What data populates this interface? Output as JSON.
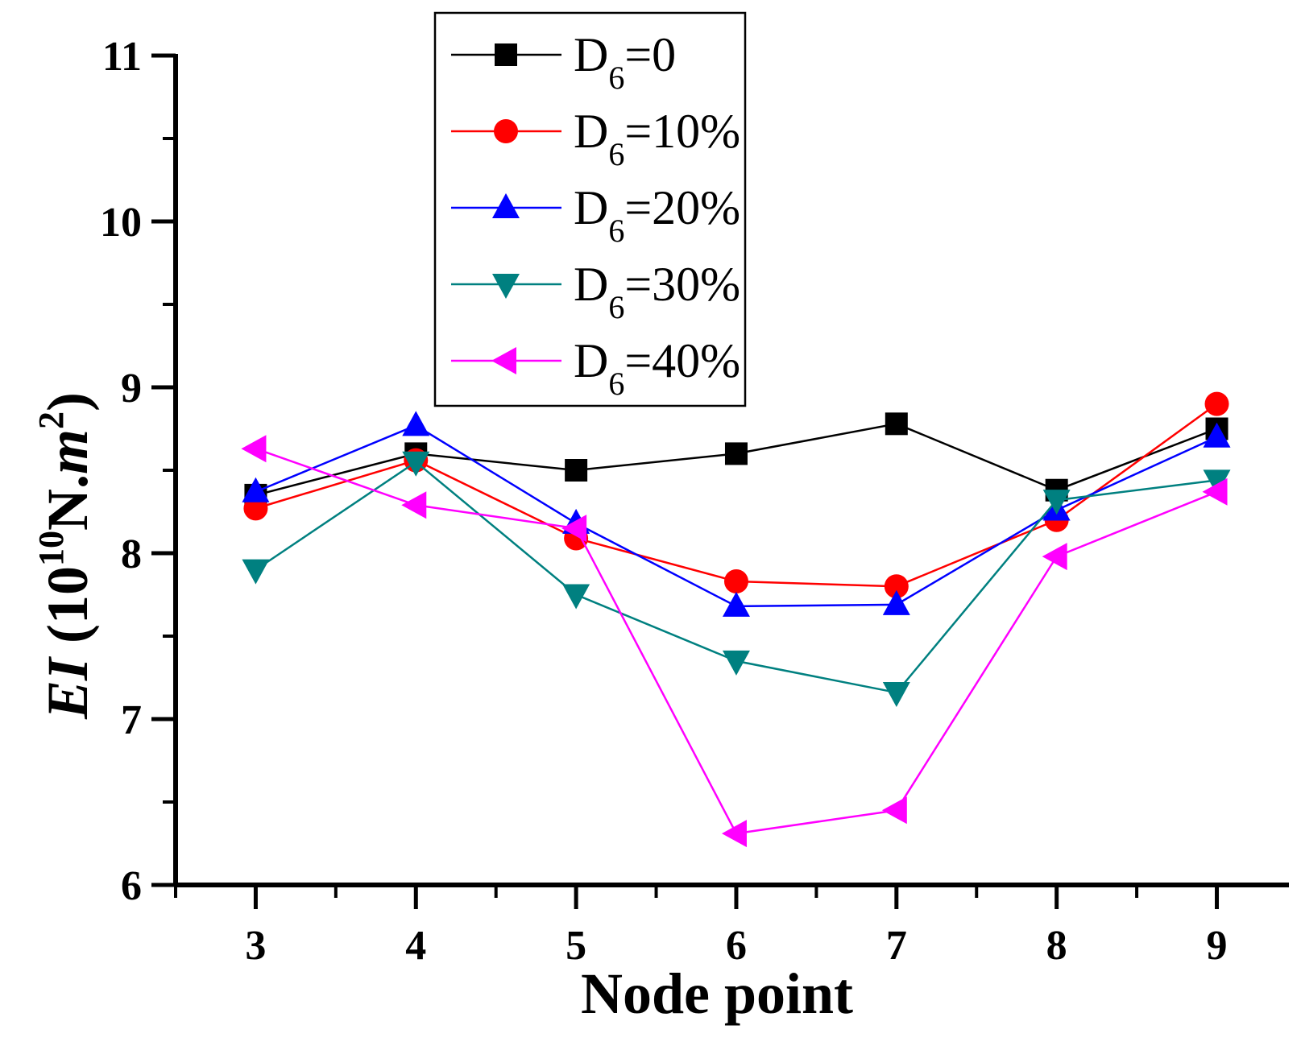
{
  "chart_data": {
    "type": "line",
    "title": "",
    "xlabel": "Node point",
    "ylabel": {
      "prefix": "EI",
      "main": "(10",
      "exp1": "10",
      "unit": "N.",
      "m": "m",
      "exp2": "2",
      "close": ")"
    },
    "ylabel_text": "EI (10^10 N.m^2)",
    "x": [
      3,
      4,
      5,
      6,
      7,
      8,
      9
    ],
    "xlim": [
      2.5,
      9.45
    ],
    "ylim": [
      6,
      11
    ],
    "xticks": [
      "3",
      "4",
      "5",
      "6",
      "7",
      "8",
      "9"
    ],
    "yticks": [
      "6",
      "7",
      "8",
      "9",
      "10",
      "11"
    ],
    "legend_position": "top-center",
    "series": [
      {
        "name": "D6=0",
        "label_main": "D",
        "label_sub": "6",
        "label_rest": "=0",
        "color": "#000000",
        "marker": "square",
        "values": [
          8.35,
          8.6,
          8.5,
          8.6,
          8.78,
          8.38,
          8.75
        ]
      },
      {
        "name": "D6=10%",
        "label_main": "D",
        "label_sub": "6",
        "label_rest": "=10%",
        "color": "#ff0000",
        "marker": "circle",
        "values": [
          8.27,
          8.56,
          8.09,
          7.83,
          7.8,
          8.2,
          8.9
        ]
      },
      {
        "name": "D6=20%",
        "label_main": "D",
        "label_sub": "6",
        "label_rest": "=20%",
        "color": "#0000ff",
        "marker": "triangle-up",
        "values": [
          8.37,
          8.77,
          8.18,
          7.68,
          7.69,
          8.26,
          8.7
        ]
      },
      {
        "name": "D6=30%",
        "label_main": "D",
        "label_sub": "6",
        "label_rest": "=30%",
        "color": "#008080",
        "marker": "triangle-down",
        "values": [
          7.9,
          8.55,
          7.75,
          7.35,
          7.16,
          8.32,
          8.44
        ]
      },
      {
        "name": "D6=40%",
        "label_main": "D",
        "label_sub": "6",
        "label_rest": "=40%",
        "color": "#ff00ff",
        "marker": "triangle-left",
        "values": [
          8.63,
          8.29,
          8.15,
          6.31,
          6.45,
          7.98,
          8.37
        ]
      }
    ]
  }
}
